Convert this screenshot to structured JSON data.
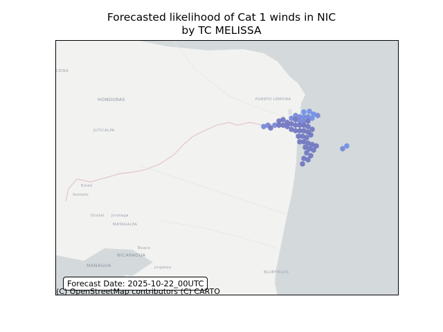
{
  "title": {
    "line1": "Forecasted likelihood of Cat 1 winds in NIC",
    "line2": "by TC MELISSA"
  },
  "map": {
    "basemap_colors": {
      "ocean": "#d4dadc",
      "land": "#f2f2f1",
      "border": "#e7c9c9",
      "text": "#9aa3ad"
    },
    "places": [
      "HONDURAS",
      "PUERTO LEMPIRA",
      "JUTICALPA",
      "NICARAGUA",
      "MANAGUA",
      "MATAGALPA",
      "BLUEFIELDS",
      "Boaco",
      "Estelí",
      "Ocotal",
      "Jinotega",
      "Juigalpa",
      "Somoto",
      "CEIBA"
    ],
    "hex_colors": {
      "high": "#6e73c0",
      "mid": "#7385d6",
      "low": "#6e8ee8"
    }
  },
  "forecast_label": "Forecast Date: 2025-10-22_00UTC",
  "attribution": "(C) OpenStreetMap contributors (C) CARTO"
}
